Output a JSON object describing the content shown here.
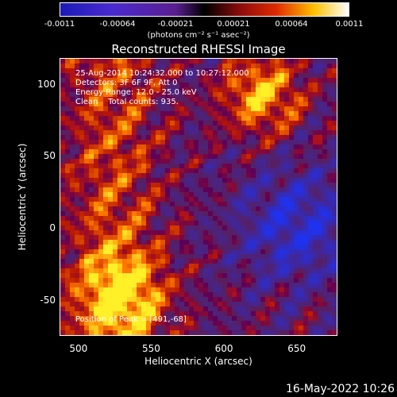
{
  "colorbar": {
    "ticks": [
      "-0.0011",
      "-0.00064",
      "-0.00021",
      "0.00021",
      "0.00064",
      "0.0011"
    ],
    "unit": "(photons cm⁻² s⁻¹ asec⁻²)",
    "min": -0.0011,
    "max": 0.0011
  },
  "chart_data": {
    "type": "heatmap",
    "title": "Reconstructed RHESSI Image",
    "xlabel": "Heliocentric X (arcsec)",
    "ylabel": "Heliocentric Y (arcsec)",
    "xlim": [
      487,
      678
    ],
    "ylim": [
      -75,
      118
    ],
    "xticks": [
      500,
      550,
      600,
      650
    ],
    "yticks": [
      -50,
      0,
      50,
      100
    ],
    "colormap": "hot-negative-blue",
    "peak": [
      491,
      -68
    ]
  },
  "annotations": {
    "line1": "25-Aug-2014 10:24:32.000 to 10:27:12.000",
    "line2": "Detectors: 3F 6F 9F, Att 0",
    "line3": "Energy Range: 12.0 - 25.0 keV",
    "line4": "Clean    Total counts: 935.",
    "peak": "Position of Peak = [491,-68]"
  },
  "timestamp": "16-May-2022 10:26"
}
